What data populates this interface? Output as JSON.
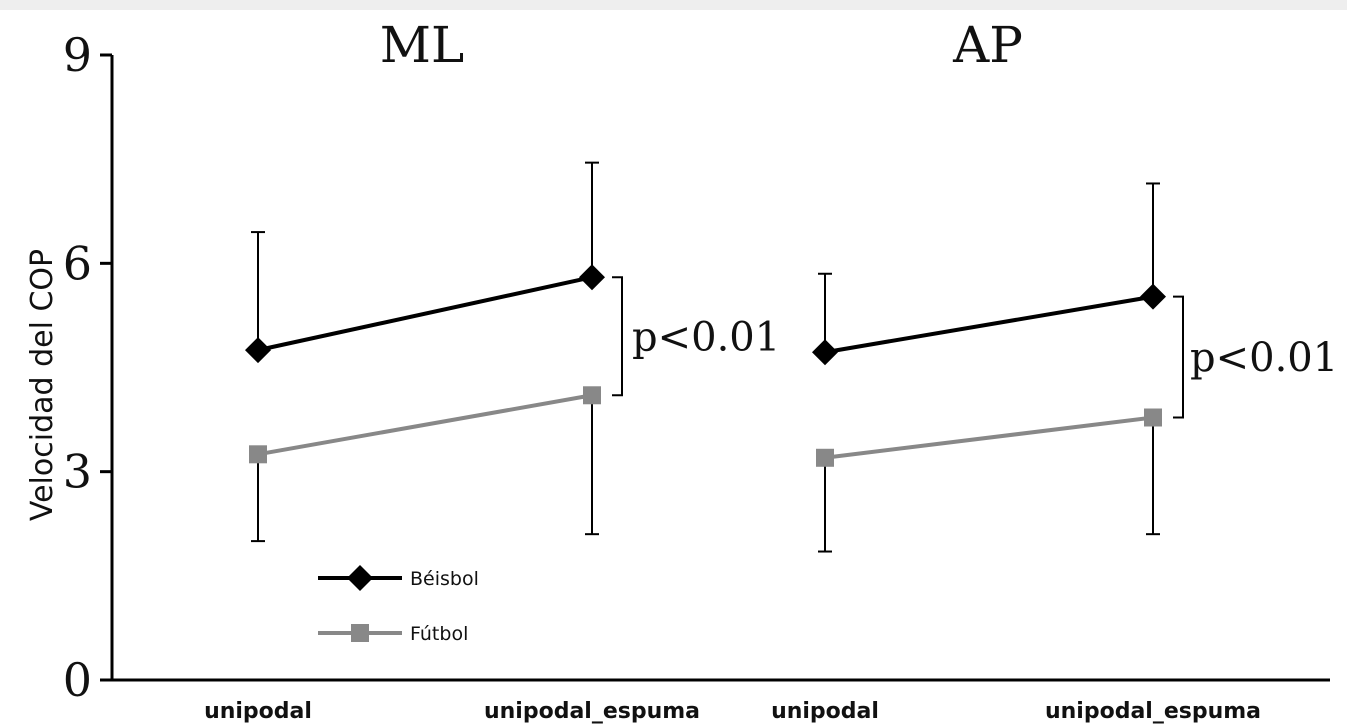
{
  "chart_data": {
    "type": "line",
    "ylabel": "Velocidad del COP",
    "ylim": [
      0,
      9
    ],
    "yticks": [
      0,
      3,
      6,
      9
    ],
    "categories": [
      "unipodal",
      "unipodal_espuma"
    ],
    "panels": [
      {
        "title": "ML",
        "annotation": "p<0.01",
        "series": [
          {
            "name": "Béisbol",
            "color": "#000000",
            "marker": "diamond",
            "values": [
              4.75,
              5.8
            ],
            "err_upper": [
              6.45,
              7.45
            ],
            "err_lower": [
              4.75,
              5.8
            ]
          },
          {
            "name": "Fútbol",
            "color": "#888888",
            "marker": "square",
            "values": [
              3.25,
              4.1
            ],
            "err_upper": [
              3.25,
              4.1
            ],
            "err_lower": [
              2.0,
              2.1
            ]
          }
        ]
      },
      {
        "title": "AP",
        "annotation": "p<0.01",
        "series": [
          {
            "name": "Béisbol",
            "color": "#000000",
            "marker": "diamond",
            "values": [
              4.72,
              5.52
            ],
            "err_upper": [
              5.85,
              7.15
            ],
            "err_lower": [
              4.72,
              5.52
            ]
          },
          {
            "name": "Fútbol",
            "color": "#888888",
            "marker": "square",
            "values": [
              3.2,
              3.78
            ],
            "err_upper": [
              3.2,
              3.78
            ],
            "err_lower": [
              1.85,
              2.1
            ]
          }
        ]
      }
    ],
    "legend": {
      "position": "lower-left",
      "entries": [
        {
          "name": "Béisbol",
          "color": "#000000",
          "marker": "diamond"
        },
        {
          "name": "Fútbol",
          "color": "#888888",
          "marker": "square"
        }
      ]
    }
  }
}
